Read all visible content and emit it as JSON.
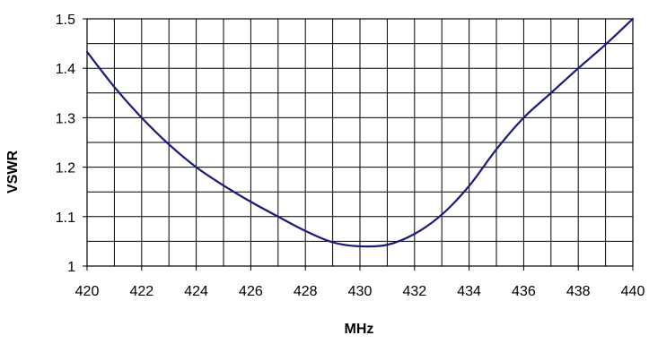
{
  "chart_data": {
    "type": "line",
    "title": "",
    "xlabel": "MHz",
    "ylabel": "VSWR",
    "xlim": [
      420,
      440
    ],
    "ylim": [
      1,
      1.5
    ],
    "x_ticks": [
      "420",
      "422",
      "424",
      "426",
      "428",
      "430",
      "432",
      "434",
      "436",
      "438",
      "440"
    ],
    "y_ticks": [
      "1",
      "1.1",
      "1.2",
      "1.3",
      "1.4",
      "1.5"
    ],
    "grid": true,
    "x_minor_step": 1,
    "y_minor_step": 0.05,
    "series": [
      {
        "color": "#1a1a7a",
        "x": [
          420,
          421,
          422,
          423,
          424,
          425,
          426,
          427,
          428,
          429,
          430,
          431,
          432,
          433,
          434,
          435,
          436,
          437,
          438,
          439,
          440
        ],
        "y": [
          1.433,
          1.362,
          1.3,
          1.246,
          1.2,
          1.163,
          1.13,
          1.1,
          1.071,
          1.048,
          1.04,
          1.043,
          1.065,
          1.104,
          1.162,
          1.236,
          1.3,
          1.35,
          1.4,
          1.448,
          1.5
        ]
      }
    ]
  }
}
